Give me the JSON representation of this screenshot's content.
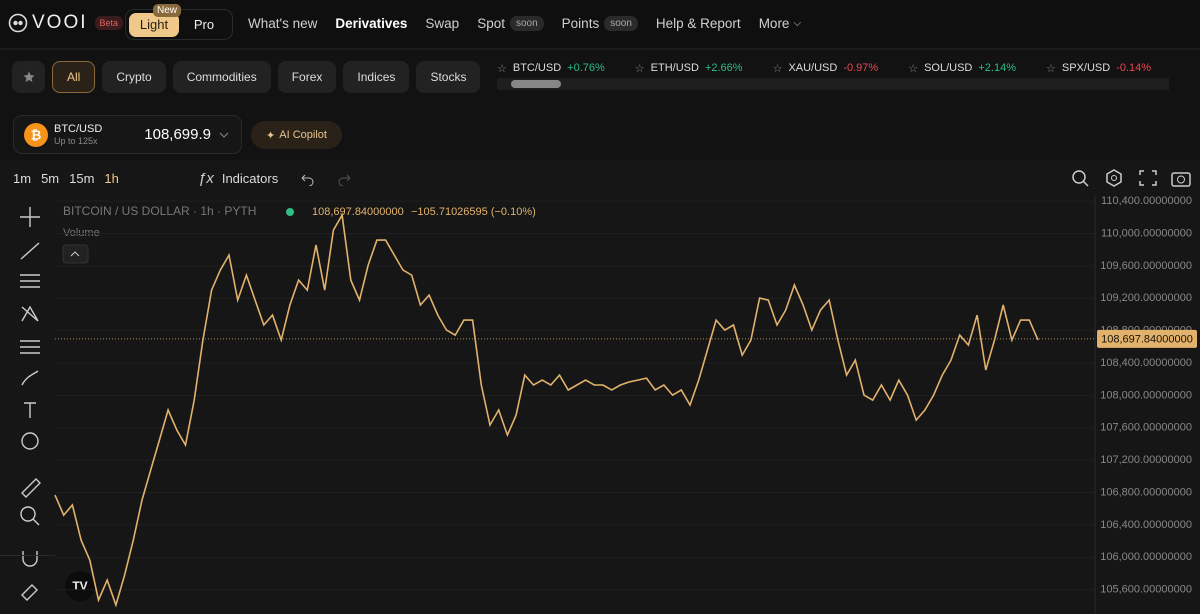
{
  "nav": {
    "logo": "VOOI",
    "badge": "Beta",
    "light": "Light",
    "new": "New",
    "pro": "Pro",
    "links": [
      {
        "label": "What's new"
      },
      {
        "label": "Derivatives"
      },
      {
        "label": "Swap"
      },
      {
        "label": "Spot",
        "tag": "soon"
      },
      {
        "label": "Points",
        "tag": "soon"
      },
      {
        "label": "Help & Report"
      },
      {
        "label": "More"
      }
    ]
  },
  "filters": [
    "All",
    "Crypto",
    "Commodities",
    "Forex",
    "Indices",
    "Stocks"
  ],
  "tickers": [
    {
      "symbol": "BTC/USD",
      "change": "+0.76%"
    },
    {
      "symbol": "ETH/USD",
      "change": "+2.66%"
    },
    {
      "symbol": "XAU/USD",
      "change": "-0.97%"
    },
    {
      "symbol": "SOL/USD",
      "change": "+2.14%"
    },
    {
      "symbol": "SPX/USD",
      "change": "-0.14%"
    }
  ],
  "market": {
    "symbol": "BTC/USD",
    "leverage": "Up to 125x",
    "price": "108,699.9",
    "copilot": "AI Copilot"
  },
  "toolbar": {
    "intervals": [
      "1m",
      "5m",
      "15m",
      "1h"
    ],
    "indicators": "Indicators"
  },
  "chart": {
    "type": "line",
    "title": "BITCOIN / US DOLLAR · 1h · PYTH",
    "change": "−105.71026595 (−0.10%)",
    "volume": "Volume",
    "color": "#e2b26c",
    "price_line": {
      "value": 108697.84,
      "label": "108,697.84000000"
    },
    "values": [
      106769,
      106522,
      106646,
      106213,
      105966,
      105472,
      105719,
      105411,
      105781,
      106213,
      106707,
      107078,
      107448,
      107819,
      107572,
      107387,
      107942,
      108683,
      109301,
      109548,
      109733,
      109177,
      109486,
      109177,
      108869,
      108992,
      108683,
      109116,
      109424,
      109301,
      109857,
      109301,
      110042,
      110227,
      109424,
      109177,
      109610,
      109918,
      109918,
      109733,
      109548,
      109486,
      109116,
      109239,
      108992,
      108807,
      108745,
      108930,
      108930,
      108128,
      107634,
      107819,
      107510,
      107757,
      108251,
      108128,
      108189,
      108128,
      108251,
      108066,
      108128,
      108189,
      108128,
      108128,
      108066,
      108128,
      108165,
      108189,
      108214,
      108066,
      108128,
      108004,
      108066,
      107881,
      108189,
      108560,
      108930,
      108807,
      108869,
      108498,
      108683,
      109202,
      109177,
      108869,
      109054,
      109363,
      109116,
      108807,
      109054,
      109177,
      108683,
      108251,
      108436,
      108004,
      107942,
      108128,
      107942,
      108189,
      108004,
      107695,
      107819,
      108004,
      108251,
      108436,
      108745,
      108622,
      108992,
      108313,
      108683,
      109116,
      108683,
      108930,
      108930,
      108683
    ],
    "ylim": [
      105300,
      110475
    ],
    "yticks": [
      {
        "value": 110400,
        "label": "110,400.00000000"
      },
      {
        "value": 110000,
        "label": "110,000.00000000"
      },
      {
        "value": 109600,
        "label": "109,600.00000000"
      },
      {
        "value": 109200,
        "label": "109,200.00000000"
      },
      {
        "value": 108800,
        "label": "108,800.00000000"
      },
      {
        "value": 108400,
        "label": "108,400.00000000"
      },
      {
        "value": 108000,
        "label": "108,000.00000000"
      },
      {
        "value": 107600,
        "label": "107,600.00000000"
      },
      {
        "value": 107200,
        "label": "107,200.00000000"
      },
      {
        "value": 106800,
        "label": "106,800.00000000"
      },
      {
        "value": 106400,
        "label": "106,400.00000000"
      },
      {
        "value": 106000,
        "label": "106,000.00000000"
      },
      {
        "value": 105600,
        "label": "105,600.00000000"
      }
    ]
  }
}
